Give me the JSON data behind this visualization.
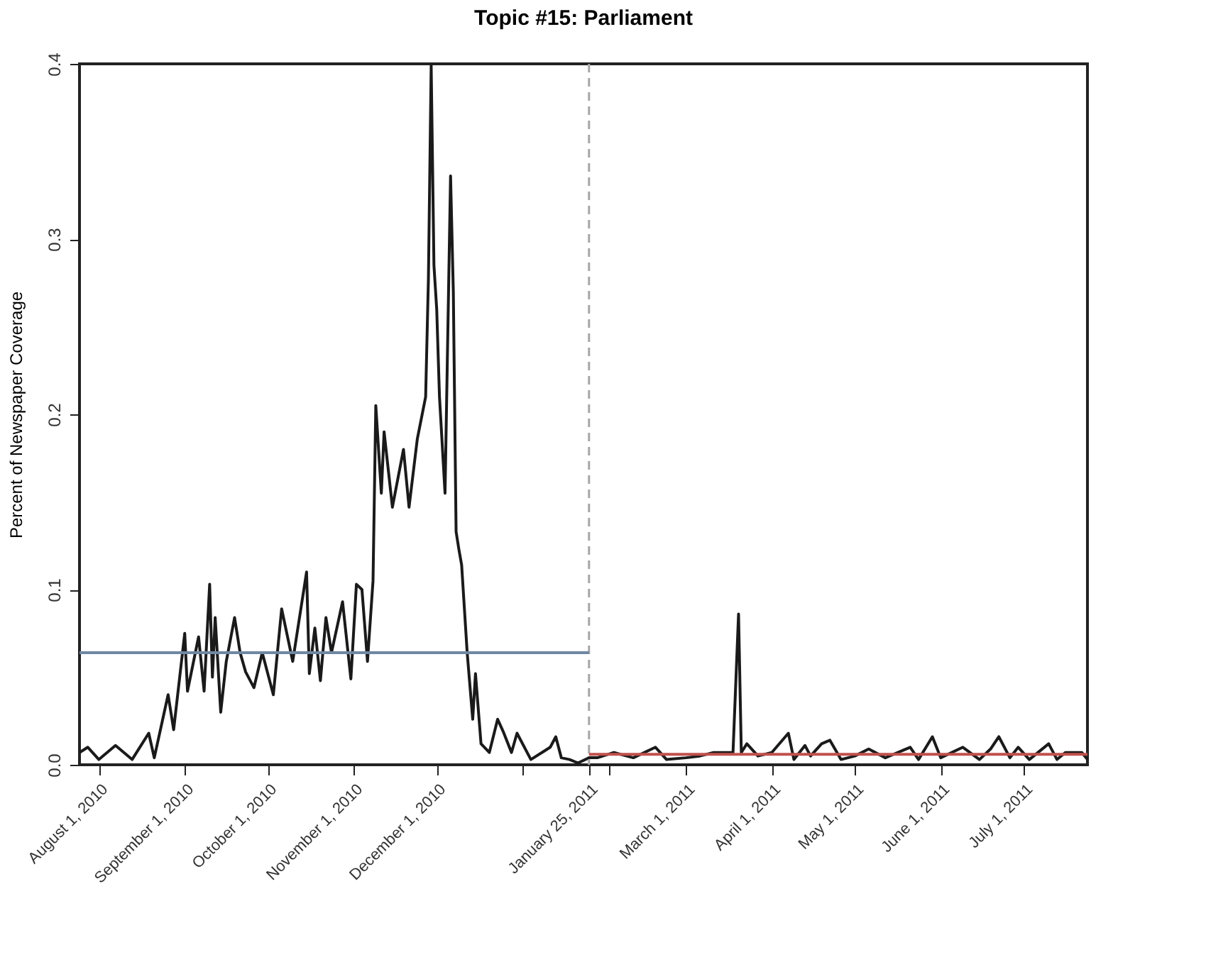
{
  "chart_data": {
    "type": "line",
    "title": "Topic #15: Parliament",
    "ylabel": "Percent of Newspaper Coverage",
    "x": [
      "2010-07-25",
      "2010-07-28",
      "2010-08-01",
      "2010-08-07",
      "2010-08-13",
      "2010-08-19",
      "2010-08-21",
      "2010-08-26",
      "2010-08-28",
      "2010-09-01",
      "2010-09-02",
      "2010-09-06",
      "2010-09-08",
      "2010-09-10",
      "2010-09-11",
      "2010-09-12",
      "2010-09-14",
      "2010-09-16",
      "2010-09-19",
      "2010-09-21",
      "2010-09-23",
      "2010-09-26",
      "2010-09-29",
      "2010-10-03",
      "2010-10-06",
      "2010-10-10",
      "2010-10-15",
      "2010-10-16",
      "2010-10-18",
      "2010-10-20",
      "2010-10-22",
      "2010-10-24",
      "2010-10-28",
      "2010-10-31",
      "2010-11-02",
      "2010-11-04",
      "2010-11-06",
      "2010-11-08",
      "2010-11-09",
      "2010-11-11",
      "2010-11-12",
      "2010-11-15",
      "2010-11-19",
      "2010-11-21",
      "2010-11-24",
      "2010-11-27",
      "2010-11-28",
      "2010-11-29",
      "2010-11-30",
      "2010-12-01",
      "2010-12-02",
      "2010-12-04",
      "2010-12-06",
      "2010-12-07",
      "2010-12-08",
      "2010-12-09",
      "2010-12-10",
      "2010-12-12",
      "2010-12-14",
      "2010-12-15",
      "2010-12-17",
      "2010-12-20",
      "2010-12-23",
      "2010-12-25",
      "2010-12-28",
      "2010-12-30",
      "2011-01-04",
      "2011-01-08",
      "2011-01-11",
      "2011-01-13",
      "2011-01-15",
      "2011-01-18",
      "2011-01-21",
      "2011-01-25",
      "2011-01-28",
      "2011-02-03",
      "2011-02-10",
      "2011-02-18",
      "2011-02-22",
      "2011-03-01",
      "2011-03-06",
      "2011-03-11",
      "2011-03-18",
      "2011-03-20",
      "2011-03-21",
      "2011-03-23",
      "2011-03-27",
      "2011-04-01",
      "2011-04-07",
      "2011-04-09",
      "2011-04-13",
      "2011-04-15",
      "2011-04-19",
      "2011-04-22",
      "2011-04-26",
      "2011-05-01",
      "2011-05-06",
      "2011-05-12",
      "2011-05-21",
      "2011-05-24",
      "2011-05-29",
      "2011-06-01",
      "2011-06-09",
      "2011-06-15",
      "2011-06-19",
      "2011-06-22",
      "2011-06-26",
      "2011-06-29",
      "2011-07-03",
      "2011-07-10",
      "2011-07-13",
      "2011-07-16",
      "2011-07-22",
      "2011-07-24"
    ],
    "series": [
      {
        "color": "#1a1a1a",
        "values": [
          0.007,
          0.01,
          0.003,
          0.011,
          0.003,
          0.018,
          0.004,
          0.04,
          0.02,
          0.075,
          0.042,
          0.073,
          0.042,
          0.103,
          0.05,
          0.084,
          0.03,
          0.059,
          0.084,
          0.064,
          0.053,
          0.044,
          0.064,
          0.04,
          0.089,
          0.059,
          0.11,
          0.052,
          0.078,
          0.048,
          0.084,
          0.064,
          0.093,
          0.049,
          0.103,
          0.1,
          0.059,
          0.105,
          0.205,
          0.155,
          0.19,
          0.147,
          0.18,
          0.147,
          0.186,
          0.21,
          0.277,
          0.399,
          0.285,
          0.26,
          0.21,
          0.155,
          0.336,
          0.27,
          0.133,
          0.123,
          0.114,
          0.064,
          0.026,
          0.052,
          0.012,
          0.007,
          0.026,
          0.019,
          0.007,
          0.018,
          0.003,
          0.007,
          0.01,
          0.016,
          0.004,
          0.003,
          0.001,
          0.004,
          0.004,
          0.007,
          0.004,
          0.01,
          0.003,
          0.004,
          0.005,
          0.007,
          0.007,
          0.086,
          0.007,
          0.012,
          0.005,
          0.007,
          0.018,
          0.003,
          0.011,
          0.005,
          0.012,
          0.014,
          0.003,
          0.005,
          0.009,
          0.004,
          0.01,
          0.003,
          0.016,
          0.004,
          0.01,
          0.003,
          0.009,
          0.016,
          0.004,
          0.01,
          0.003,
          0.012,
          0.003,
          0.007,
          0.007,
          0.003
        ]
      },
      {
        "type": "line",
        "color": "#6f87a3",
        "x": [
          "2010-07-25",
          "2011-01-25"
        ],
        "values": [
          0.064,
          0.064
        ]
      },
      {
        "type": "line",
        "color": "#c0504d",
        "x": [
          "2011-01-25",
          "2011-07-24"
        ],
        "values": [
          0.006,
          0.006
        ]
      }
    ],
    "xlim": [
      "2010-07-25",
      "2011-07-24"
    ],
    "xticks": [
      {
        "value": "2010-08-01",
        "label": "August 1, 2010"
      },
      {
        "value": "2010-09-01",
        "label": "September 1, 2010"
      },
      {
        "value": "2010-10-01",
        "label": "October 1, 2010"
      },
      {
        "value": "2010-11-01",
        "label": "November 1, 2010"
      },
      {
        "value": "2010-12-01",
        "label": "December 1, 2010"
      },
      {
        "value": "2011-01-01",
        "label": null
      },
      {
        "value": "2011-01-25",
        "label": "January 25, 2011"
      },
      {
        "value": "2011-02-01",
        "label": null
      },
      {
        "value": "2011-03-01",
        "label": "March 1, 2011"
      },
      {
        "value": "2011-04-01",
        "label": "April 1, 2011"
      },
      {
        "value": "2011-05-01",
        "label": "May 1, 2011"
      },
      {
        "value": "2011-06-01",
        "label": "June 1, 2011"
      },
      {
        "value": "2011-07-01",
        "label": "July 1, 2011"
      }
    ],
    "ylim": [
      0,
      0.4
    ],
    "yticks": [
      {
        "value": 0,
        "label": "0.0"
      },
      {
        "value": 0.1,
        "label": "0.1"
      },
      {
        "value": 0.2,
        "label": "0.2"
      },
      {
        "value": 0.3,
        "label": "0.3"
      },
      {
        "value": 0.4,
        "label": "0.4"
      }
    ],
    "ref_lines": [
      {
        "axis": "x",
        "value": "2011-01-25",
        "label": null,
        "color": "#a6a6a6",
        "line_style": "dashed"
      }
    ],
    "grid": false
  }
}
